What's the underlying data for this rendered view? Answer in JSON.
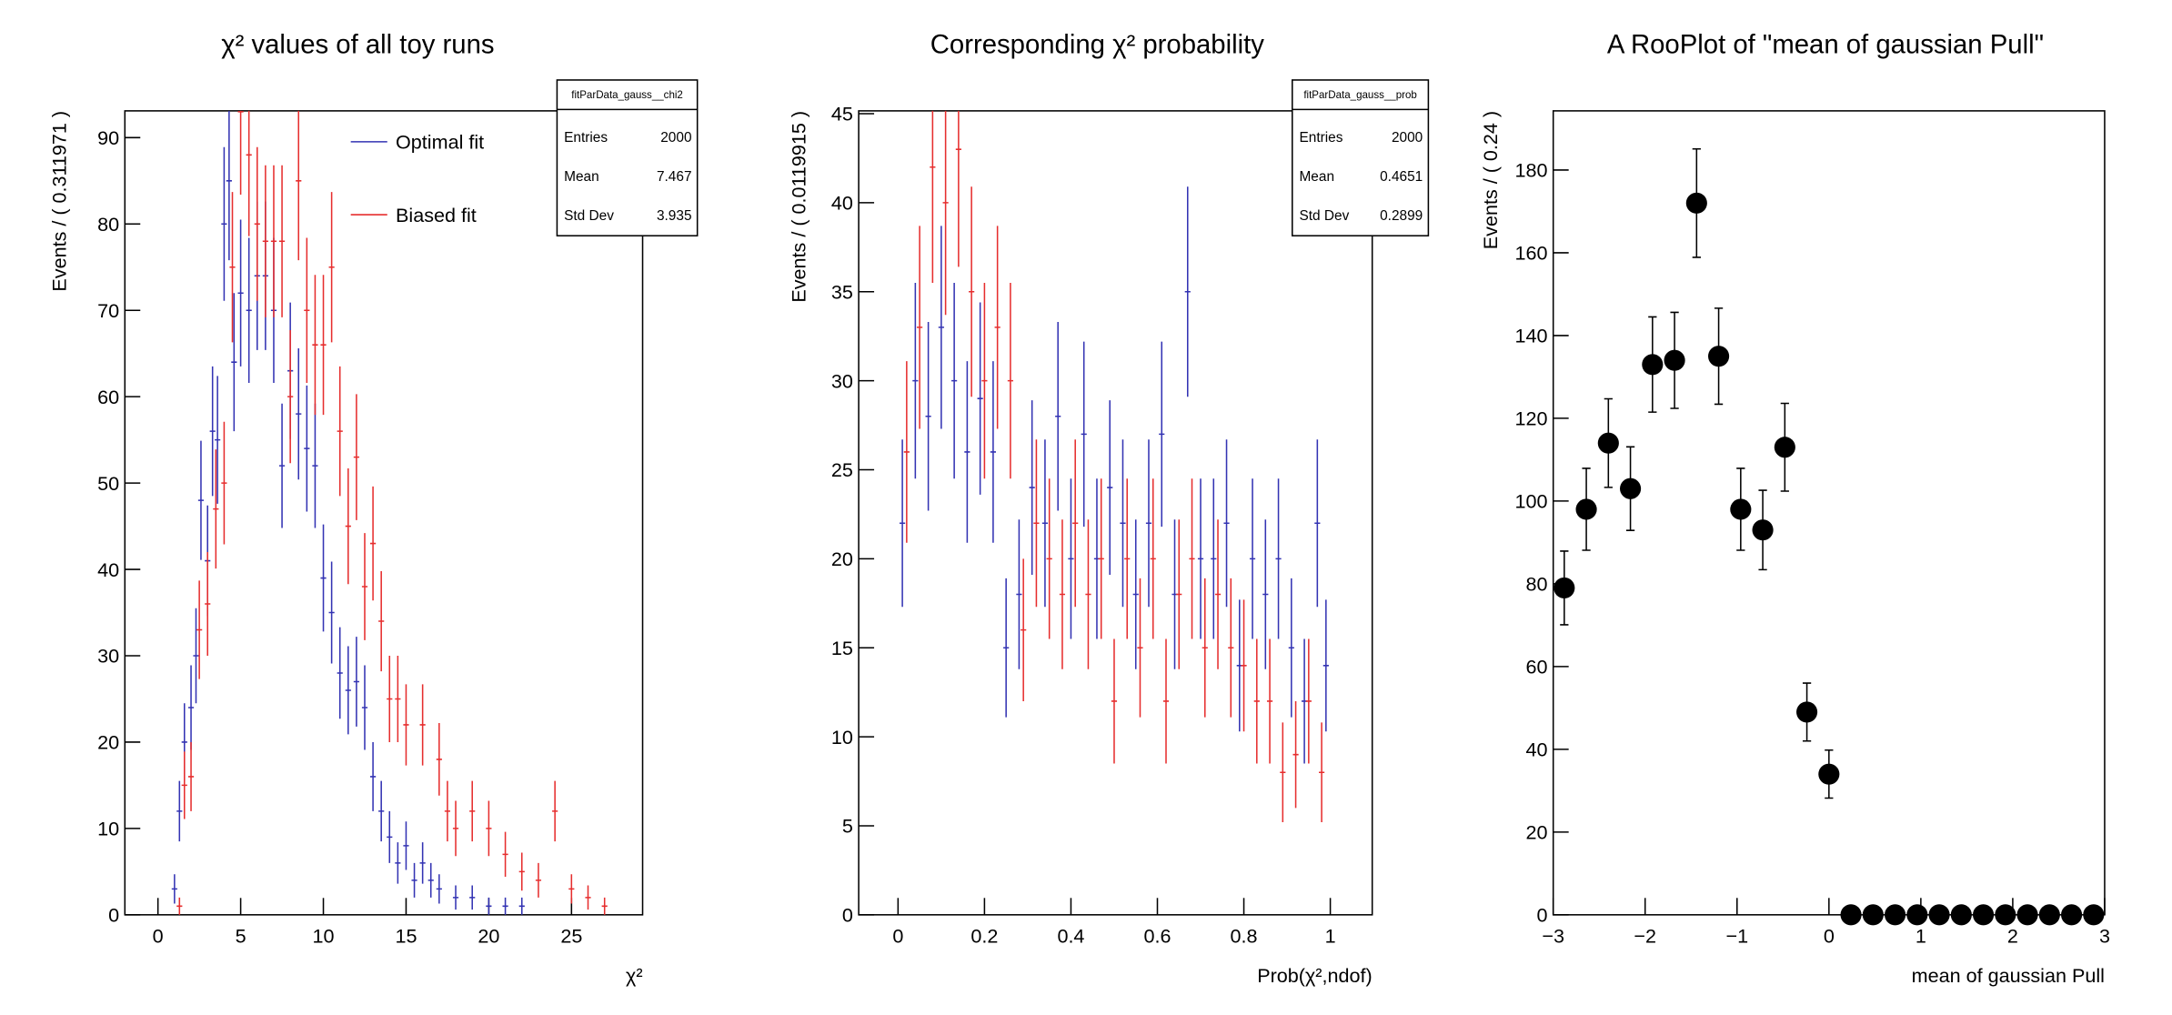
{
  "chart_data": [
    {
      "type": "errorbar",
      "title": "χ² values of all toy runs",
      "x_label": "χ²",
      "y_label": "Events / ( 0.311971 )",
      "xlim": [
        -2,
        29.3
      ],
      "ylim": [
        0,
        93.1
      ],
      "xticks": [
        0,
        5,
        10,
        15,
        20,
        25
      ],
      "yticks": [
        0,
        10,
        20,
        30,
        40,
        50,
        60,
        70,
        80,
        90
      ],
      "stats": {
        "title": "fitParData_gauss__chi2",
        "rows": [
          [
            "Entries",
            2000
          ],
          [
            "Mean",
            7.467
          ],
          [
            "Std Dev",
            3.935
          ]
        ]
      },
      "series": [
        {
          "name": "Optimal fit",
          "color": "#3333b3",
          "x": [
            1,
            1.3,
            1.6,
            2,
            2.3,
            2.6,
            3,
            3.3,
            3.6,
            4,
            4.3,
            4.6,
            5,
            5.5,
            6,
            6.5,
            7,
            7.5,
            8,
            8.5,
            9,
            9.5,
            10,
            10.5,
            11,
            11.5,
            12,
            12.5,
            13,
            13.5,
            14,
            14.5,
            15,
            15.5,
            16,
            16.5,
            17,
            18,
            19,
            20,
            21,
            22
          ],
          "values": [
            3,
            12,
            20,
            24,
            30,
            48,
            41,
            56,
            55,
            80,
            85,
            64,
            72,
            70,
            74,
            74,
            70,
            52,
            63,
            58,
            54,
            52,
            39,
            35,
            28,
            26,
            27,
            24,
            16,
            12,
            9,
            6,
            8,
            4,
            6,
            4,
            3,
            2,
            2,
            1,
            1,
            1
          ],
          "errors": [
            1.7,
            3.5,
            4.5,
            4.9,
            5.5,
            6.9,
            6.4,
            7.5,
            7.4,
            8.9,
            9.2,
            8,
            8.5,
            8.4,
            8.6,
            8.6,
            8.4,
            7.2,
            7.9,
            7.6,
            7.3,
            7.2,
            6.2,
            5.9,
            5.3,
            5.1,
            5.2,
            4.9,
            4,
            3.5,
            3,
            2.4,
            2.8,
            2,
            2.4,
            2,
            1.7,
            1.4,
            1.4,
            1,
            1,
            1
          ]
        },
        {
          "name": "Biased fit",
          "color": "#e62e2e",
          "x": [
            1.3,
            1.6,
            2,
            2.5,
            3,
            3.5,
            4,
            4.5,
            5,
            5.5,
            6,
            6.5,
            7,
            7.5,
            8,
            8.5,
            9,
            9.5,
            10,
            10.5,
            11,
            11.5,
            12,
            12.5,
            13,
            13.5,
            14,
            14.5,
            15,
            16,
            17,
            17.5,
            18,
            19,
            20,
            21,
            22,
            23,
            24,
            25,
            26,
            27
          ],
          "values": [
            1,
            15,
            16,
            33,
            36,
            47,
            50,
            75,
            93,
            88,
            80,
            78,
            78,
            78,
            60,
            85,
            70,
            66,
            66,
            75,
            56,
            45,
            53,
            38,
            43,
            34,
            25,
            25,
            22,
            22,
            18,
            12,
            10,
            12,
            10,
            7,
            5,
            4,
            12,
            3,
            2,
            1
          ],
          "errors": [
            1,
            3.9,
            4,
            5.7,
            6,
            6.9,
            7.1,
            8.7,
            9.6,
            9.4,
            8.9,
            8.8,
            8.8,
            8.8,
            7.7,
            9.2,
            8.4,
            8.1,
            8.1,
            8.7,
            7.5,
            6.7,
            7.3,
            6.2,
            6.6,
            5.8,
            5,
            5,
            4.7,
            4.7,
            4.2,
            3.5,
            3.2,
            3.5,
            3.2,
            2.6,
            2.2,
            2,
            3.5,
            1.7,
            1.4,
            1
          ]
        }
      ]
    },
    {
      "type": "errorbar",
      "title": "Corresponding χ² probability",
      "x_label": "Prob(χ²,ndof)",
      "y_label": "Events / ( 0.0119915 )",
      "xlim": [
        -0.091,
        1.097
      ],
      "ylim": [
        0,
        45.16
      ],
      "xticks": [
        0,
        0.2,
        0.4,
        0.6,
        0.8,
        1
      ],
      "yticks": [
        0,
        5,
        10,
        15,
        20,
        25,
        30,
        35,
        40,
        45
      ],
      "stats": {
        "title": "fitParData_gauss__prob",
        "rows": [
          [
            "Entries",
            2000
          ],
          [
            "Mean",
            0.4651
          ],
          [
            "Std Dev",
            0.2899
          ]
        ]
      },
      "series": [
        {
          "name": "Optimal fit",
          "color": "#3333b3",
          "x": [
            0.01,
            0.04,
            0.07,
            0.1,
            0.13,
            0.16,
            0.19,
            0.22,
            0.25,
            0.28,
            0.31,
            0.34,
            0.37,
            0.4,
            0.43,
            0.46,
            0.49,
            0.52,
            0.55,
            0.58,
            0.61,
            0.64,
            0.67,
            0.7,
            0.73,
            0.76,
            0.79,
            0.82,
            0.85,
            0.88,
            0.91,
            0.94,
            0.97,
            0.99
          ],
          "values": [
            22,
            30,
            28,
            33,
            30,
            26,
            29,
            26,
            15,
            18,
            24,
            22,
            28,
            20,
            27,
            20,
            24,
            22,
            18,
            22,
            27,
            18,
            35,
            20,
            20,
            22,
            14,
            20,
            18,
            20,
            15,
            12,
            22,
            14
          ],
          "errors": [
            4.7,
            5.5,
            5.3,
            5.7,
            5.5,
            5.1,
            5.4,
            5.1,
            3.9,
            4.2,
            4.9,
            4.7,
            5.3,
            4.5,
            5.2,
            4.5,
            4.9,
            4.7,
            4.2,
            4.7,
            5.2,
            4.2,
            5.9,
            4.5,
            4.5,
            4.7,
            3.7,
            4.5,
            4.2,
            4.5,
            3.9,
            3.5,
            4.7,
            3.7
          ]
        },
        {
          "name": "Biased fit",
          "color": "#e62e2e",
          "x": [
            0.02,
            0.05,
            0.08,
            0.11,
            0.14,
            0.17,
            0.2,
            0.23,
            0.26,
            0.29,
            0.32,
            0.35,
            0.38,
            0.41,
            0.44,
            0.47,
            0.5,
            0.53,
            0.56,
            0.59,
            0.62,
            0.65,
            0.68,
            0.71,
            0.74,
            0.77,
            0.8,
            0.83,
            0.86,
            0.89,
            0.92,
            0.95,
            0.98
          ],
          "values": [
            26,
            33,
            42,
            40,
            43,
            35,
            30,
            33,
            30,
            16,
            22,
            20,
            18,
            22,
            18,
            20,
            12,
            20,
            15,
            20,
            12,
            18,
            20,
            15,
            18,
            15,
            14,
            12,
            12,
            8,
            9,
            12,
            8
          ],
          "errors": [
            5.1,
            5.7,
            6.5,
            6.3,
            6.6,
            5.9,
            5.5,
            5.7,
            5.5,
            4,
            4.7,
            4.5,
            4.2,
            4.7,
            4.2,
            4.5,
            3.5,
            4.5,
            3.9,
            4.5,
            3.5,
            4.2,
            4.5,
            3.9,
            4.2,
            3.9,
            3.7,
            3.5,
            3.5,
            2.8,
            3,
            3.5,
            2.8
          ]
        }
      ]
    },
    {
      "type": "points",
      "title": "A RooPlot of \"mean of gaussian Pull\"",
      "x_label": "mean of gaussian Pull",
      "y_label": "Events / ( 0.24 )",
      "xlim": [
        -3,
        3
      ],
      "ylim": [
        0,
        194.3
      ],
      "xticks": [
        {
          "value": -3,
          "label": "−3"
        },
        {
          "value": -2,
          "label": "−2"
        },
        {
          "value": -1,
          "label": "−1"
        },
        0,
        1,
        2,
        3
      ],
      "yticks": [
        0,
        20,
        40,
        60,
        80,
        100,
        120,
        140,
        160,
        180
      ],
      "series": [
        {
          "color": "#000000",
          "x": [
            -2.88,
            -2.64,
            -2.4,
            -2.16,
            -1.92,
            -1.68,
            -1.44,
            -1.2,
            -0.96,
            -0.72,
            -0.48,
            -0.24,
            0,
            0.24,
            0.48,
            0.72,
            0.96,
            1.2,
            1.44,
            1.68,
            1.92,
            2.16,
            2.4,
            2.64,
            2.88
          ],
          "values": [
            79,
            98,
            114,
            103,
            133,
            134,
            172,
            135,
            98,
            93,
            113,
            49,
            34,
            0,
            0,
            0,
            0,
            0,
            0,
            0,
            0,
            0,
            0,
            0,
            0
          ],
          "errors": [
            8.9,
            9.9,
            10.7,
            10.1,
            11.5,
            11.6,
            13.1,
            11.6,
            9.9,
            9.6,
            10.6,
            7,
            5.8,
            0,
            0,
            0,
            0,
            0,
            0,
            0,
            0,
            0,
            0,
            0,
            0
          ]
        }
      ]
    }
  ]
}
